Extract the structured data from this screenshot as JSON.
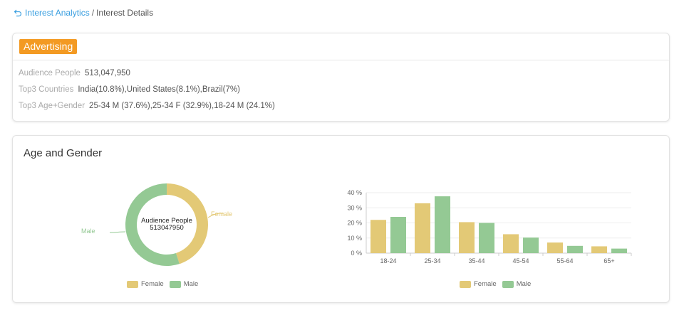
{
  "breadcrumb": {
    "link": "Interest Analytics",
    "separator": "/",
    "current": "Interest Details"
  },
  "summary": {
    "tag": "Advertising",
    "rows": [
      {
        "label": "Audience People",
        "value": "513,047,950"
      },
      {
        "label": "Top3 Countries",
        "value": "India(10.8%),United States(8.1%),Brazil(7%)"
      },
      {
        "label": "Top3 Age+Gender",
        "value": "25-34 M (37.6%),25-34 F (32.9%),18-24 M (24.1%)"
      }
    ]
  },
  "age_gender": {
    "title": "Age and Gender",
    "donut": {
      "center_title": "Audience People",
      "center_value": "513047950",
      "female_label": "Female",
      "male_label": "Male"
    },
    "legend": {
      "female": "Female",
      "male": "Male"
    }
  },
  "colors": {
    "female": "#e3c976",
    "male": "#94c994",
    "accent": "#f39a23",
    "link": "#3a9fe0"
  },
  "chart_data": [
    {
      "type": "pie",
      "style": "donut",
      "labels": [
        "Female",
        "Male"
      ],
      "values": [
        45,
        55
      ]
    },
    {
      "type": "bar",
      "categories": [
        "18-24",
        "25-34",
        "35-44",
        "45-54",
        "55-64",
        "65+"
      ],
      "series": [
        {
          "name": "Female",
          "values": [
            22,
            33,
            20.5,
            12.5,
            7,
            4.5
          ]
        },
        {
          "name": "Male",
          "values": [
            24,
            37.6,
            20,
            10.3,
            4.8,
            3
          ]
        }
      ],
      "yticks": [
        "0 %",
        "10 %",
        "20 %",
        "30 %",
        "40 %"
      ],
      "ylim": [
        0,
        40
      ],
      "grid": true,
      "legend": "bottom"
    }
  ]
}
